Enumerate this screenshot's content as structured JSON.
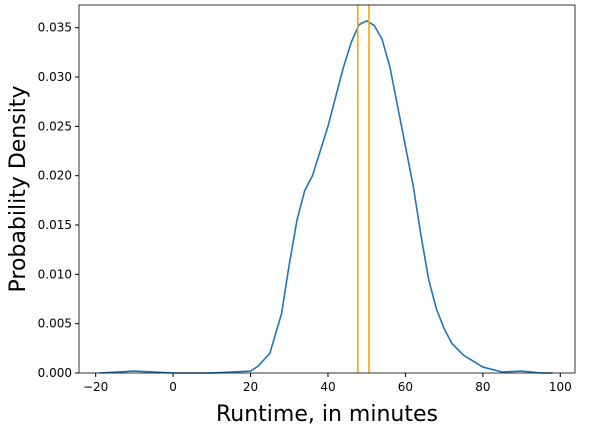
{
  "chart_data": {
    "type": "line",
    "xlabel": "Runtime, in minutes",
    "ylabel": "Probability Density",
    "x": [
      -19,
      -10,
      0,
      10,
      20,
      22,
      25,
      28,
      30,
      32,
      34,
      36,
      38,
      40,
      42,
      44,
      46,
      48,
      50,
      52,
      54,
      56,
      58,
      60,
      62,
      64,
      66,
      68,
      70,
      72,
      75,
      80,
      85,
      90,
      95,
      98
    ],
    "series": [
      {
        "color": "#1f77b4",
        "values": [
          0,
          0.0002,
          0,
          0,
          0.0002,
          0.0007,
          0.002,
          0.006,
          0.011,
          0.0155,
          0.0185,
          0.02,
          0.0225,
          0.025,
          0.028,
          0.031,
          0.0335,
          0.0353,
          0.0357,
          0.0352,
          0.0338,
          0.031,
          0.027,
          0.023,
          0.019,
          0.014,
          0.0095,
          0.0065,
          0.0045,
          0.003,
          0.0018,
          0.0006,
          0.0001,
          0.0002,
          0,
          0
        ]
      }
    ],
    "vlines": [
      {
        "x": 47.7,
        "color": "orange"
      },
      {
        "x": 50.6,
        "color": "orange"
      }
    ],
    "xlim": [
      -24.3,
      103.8
    ],
    "xticks": [
      {
        "value": -20,
        "label": "−20"
      },
      0,
      20,
      40,
      60,
      80,
      100
    ],
    "ylim": [
      0,
      0.0373
    ],
    "yticks": [
      {
        "value": 0,
        "label": "0.000"
      },
      {
        "value": 0.005,
        "label": "0.005"
      },
      {
        "value": 0.01,
        "label": "0.010"
      },
      {
        "value": 0.015,
        "label": "0.015"
      },
      {
        "value": 0.02,
        "label": "0.020"
      },
      {
        "value": 0.025,
        "label": "0.025"
      },
      {
        "value": 0.03,
        "label": "0.030"
      },
      {
        "value": 0.035,
        "label": "0.035"
      }
    ]
  }
}
